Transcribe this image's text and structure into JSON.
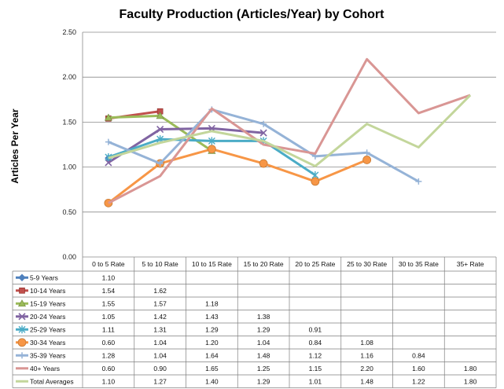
{
  "chart_data": {
    "type": "line",
    "title": "Faculty Production (Articles/Year) by Cohort",
    "xlabel": "",
    "ylabel": "Articles Per Year",
    "ylim": [
      0,
      2.5
    ],
    "yticks": [
      "0.00",
      "0.50",
      "1.00",
      "1.50",
      "2.00",
      "2.50"
    ],
    "categories": [
      "0 to 5 Rate",
      "5 to 10 Rate",
      "10 to 15 Rate",
      "15 to 20 Rate",
      "20 to 25 Rate",
      "25 to 30 Rate",
      "30 to 35 Rate",
      "35+ Rate"
    ],
    "grid": true,
    "legend": "table-below",
    "series": [
      {
        "name": "5-9 Years",
        "color": "#4f81bd",
        "marker": "diamond",
        "values": [
          1.1,
          null,
          null,
          null,
          null,
          null,
          null,
          null
        ],
        "labels": [
          "1.10",
          "",
          "",
          "",
          "",
          "",
          "",
          ""
        ]
      },
      {
        "name": "10-14 Years",
        "color": "#c0504d",
        "marker": "square",
        "values": [
          1.54,
          1.62,
          null,
          null,
          null,
          null,
          null,
          null
        ],
        "labels": [
          "1.54",
          "1.62",
          "",
          "",
          "",
          "",
          "",
          ""
        ]
      },
      {
        "name": "15-19 Years",
        "color": "#9bbb59",
        "marker": "triangle",
        "values": [
          1.55,
          1.57,
          1.18,
          null,
          null,
          null,
          null,
          null
        ],
        "labels": [
          "1.55",
          "1.57",
          "1.18",
          "",
          "",
          "",
          "",
          ""
        ]
      },
      {
        "name": "20-24 Years",
        "color": "#8064a2",
        "marker": "x",
        "values": [
          1.05,
          1.42,
          1.43,
          1.38,
          null,
          null,
          null,
          null
        ],
        "labels": [
          "1.05",
          "1.42",
          "1.43",
          "1.38",
          "",
          "",
          "",
          ""
        ]
      },
      {
        "name": "25-29 Years",
        "color": "#4bacc6",
        "marker": "star",
        "values": [
          1.11,
          1.31,
          1.29,
          1.29,
          0.91,
          null,
          null,
          null
        ],
        "labels": [
          "1.11",
          "1.31",
          "1.29",
          "1.29",
          "0.91",
          "",
          "",
          ""
        ]
      },
      {
        "name": "30-34 Years",
        "color": "#f79646",
        "marker": "circle",
        "values": [
          0.6,
          1.04,
          1.2,
          1.04,
          0.84,
          1.08,
          null,
          null
        ],
        "labels": [
          "0.60",
          "1.04",
          "1.20",
          "1.04",
          "0.84",
          "1.08",
          "",
          ""
        ]
      },
      {
        "name": "35-39 Years",
        "color": "#95b3d7",
        "marker": "plus",
        "values": [
          1.28,
          1.04,
          1.64,
          1.48,
          1.12,
          1.16,
          0.84,
          null
        ],
        "labels": [
          "1.28",
          "1.04",
          "1.64",
          "1.48",
          "1.12",
          "1.16",
          "0.84",
          ""
        ]
      },
      {
        "name": "40+ Years",
        "color": "#d99694",
        "marker": "none",
        "values": [
          0.6,
          0.9,
          1.65,
          1.25,
          1.15,
          2.2,
          1.6,
          1.8
        ],
        "labels": [
          "0.60",
          "0.90",
          "1.65",
          "1.25",
          "1.15",
          "2.20",
          "1.60",
          "1.80"
        ]
      },
      {
        "name": "Total Averages",
        "color": "#c3d69b",
        "marker": "none",
        "values": [
          1.1,
          1.27,
          1.4,
          1.29,
          1.01,
          1.48,
          1.22,
          1.8
        ],
        "labels": [
          "1.10",
          "1.27",
          "1.40",
          "1.29",
          "1.01",
          "1.48",
          "1.22",
          "1.80"
        ]
      }
    ]
  }
}
